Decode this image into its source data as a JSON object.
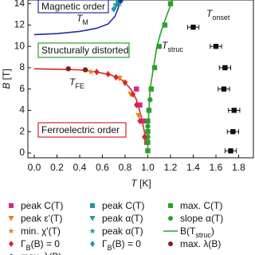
{
  "chart_data": {
    "type": "scatter",
    "xlabel": {
      "text": "T",
      "rest": " [K]"
    },
    "ylabel": {
      "text": "B",
      "rest": " [T]"
    },
    "xlim": [
      -0.056,
      1.93
    ],
    "ylim": [
      -0.45,
      14.35
    ],
    "xticks": [
      {
        "value": 0,
        "label": "0.0"
      },
      0.2,
      0.4,
      0.6,
      0.8,
      {
        "value": 1,
        "label": "1.0"
      },
      1.2,
      1.4,
      1.6,
      1.8
    ],
    "yticks": [
      0,
      2,
      4,
      6,
      8,
      10,
      12,
      14
    ],
    "regions": [
      {
        "text": "Magnetic order",
        "color": "#1f2fa0"
      },
      {
        "text": "Structurally distorted",
        "color": "#2ca02c"
      },
      {
        "text": "Ferroelectric order",
        "color": "#d62728"
      }
    ],
    "annotations": [
      {
        "text": "T",
        "sub": "M"
      },
      {
        "text": "T",
        "sub": "struc"
      },
      {
        "text": "T",
        "sub": "FE"
      },
      {
        "text": "T",
        "sub": "onset"
      }
    ],
    "curves": [
      {
        "color": "#d62728",
        "x": [
          0,
          0.2,
          0.4,
          0.55,
          0.68,
          0.78,
          0.85,
          0.9,
          0.94,
          0.98,
          1.0
        ],
        "values": [
          7.9,
          7.85,
          7.8,
          7.6,
          7.3,
          6.8,
          6,
          5,
          3.5,
          1.5,
          0.8
        ]
      },
      {
        "color": "#1f2fa0",
        "x": [
          0,
          0.2,
          0.4,
          0.55,
          0.65,
          0.71,
          0.74,
          0.76
        ],
        "values": [
          11.1,
          11.2,
          11.4,
          11.7,
          12.1,
          12.8,
          13.6,
          14.4
        ]
      }
    ],
    "onset": {
      "color": "#111111",
      "x": [
        1.73,
        1.75,
        1.76,
        1.67,
        1.68,
        1.6,
        1.4
      ],
      "xerr": [
        0.05,
        0.05,
        0.05,
        0.05,
        0.05,
        0.05,
        0.05
      ],
      "values": [
        0.2,
        2,
        4,
        6,
        8,
        10,
        11.8
      ]
    },
    "series": [
      {
        "name": "peak C(T)",
        "marker": "square",
        "color": "#e0218a",
        "x": [
          0.9,
          0.93,
          0.96,
          0.99
        ],
        "values": [
          6,
          4.5,
          3,
          1
        ]
      },
      {
        "name": "peak C(T)",
        "marker": "square",
        "color": "#1a9a9a",
        "x": [
          0.74
        ],
        "values": [
          14.2
        ]
      },
      {
        "name": "max. C(T)",
        "marker": "square",
        "color": "#2ca02c",
        "x": [
          1.0,
          1.0,
          1.0,
          1.0,
          1.01,
          1.03,
          1.06,
          1.1,
          1.15,
          1.2
        ],
        "values": [
          0.2,
          1,
          2,
          3,
          4,
          6,
          8,
          10,
          12,
          14
        ]
      },
      {
        "name": "peak ε'(T)",
        "marker": "tri",
        "color": "#e8801a",
        "x": [
          0.75,
          0.85,
          0.92
        ],
        "values": [
          7,
          5.5,
          3.5
        ]
      },
      {
        "name": "peak α(T)",
        "marker": "tri",
        "color": "#1a9a9a",
        "x": [
          0.72
        ],
        "values": [
          13.8
        ]
      },
      {
        "name": "slope α(T)",
        "marker": "circle",
        "color": "#2ca02c",
        "x": [
          1.0,
          1.0,
          1.02
        ],
        "values": [
          1.5,
          2.5,
          5
        ]
      },
      {
        "name": "min. χ'(T)",
        "marker": "star",
        "color": "#e8801a",
        "x": [
          0.5,
          0.8
        ],
        "values": [
          7.6,
          6.6
        ]
      },
      {
        "name": "peak α(T)",
        "marker": "star",
        "color": "#1a9a9a",
        "x": [
          0.75
        ],
        "values": [
          14
        ]
      },
      {
        "name": "B(T",
        "name_sub": "struc",
        "name_end": ")",
        "marker": "line",
        "color": "#2ca02c",
        "x": [
          1.0,
          1.0,
          1.0,
          1.01,
          1.02,
          1.05,
          1.08,
          1.12,
          1.17,
          1.22
        ],
        "values": [
          0,
          1,
          2,
          4,
          6,
          8,
          10,
          11.5,
          13,
          14.4
        ]
      },
      {
        "name": "Γ",
        "name_sub": "B",
        "name_end": "(B) = 0",
        "marker": "diamond",
        "color": "#d62728",
        "x": [
          0.55,
          0.65,
          0.72,
          0.8,
          0.87,
          0.9,
          0.93,
          0.97
        ],
        "values": [
          7.6,
          7.4,
          7.1,
          6.6,
          5.5,
          4.5,
          3,
          1.5
        ]
      },
      {
        "name": "Γ",
        "name_sub": "B",
        "name_end": "(B) = 0",
        "marker": "diamond",
        "color": "#1a9a9a",
        "x": [
          0.7
        ],
        "values": [
          13.5
        ]
      },
      {
        "name": "max. λ(B)",
        "marker": "circle",
        "color": "#8b1a1a",
        "x": [
          0.3,
          0.45
        ],
        "values": [
          7.9,
          7.8
        ]
      },
      {
        "name": "max. λ(B)",
        "marker": "circle",
        "color": "#1f2fa0",
        "x": [
          0.76
        ],
        "values": [
          14.3
        ]
      }
    ]
  }
}
